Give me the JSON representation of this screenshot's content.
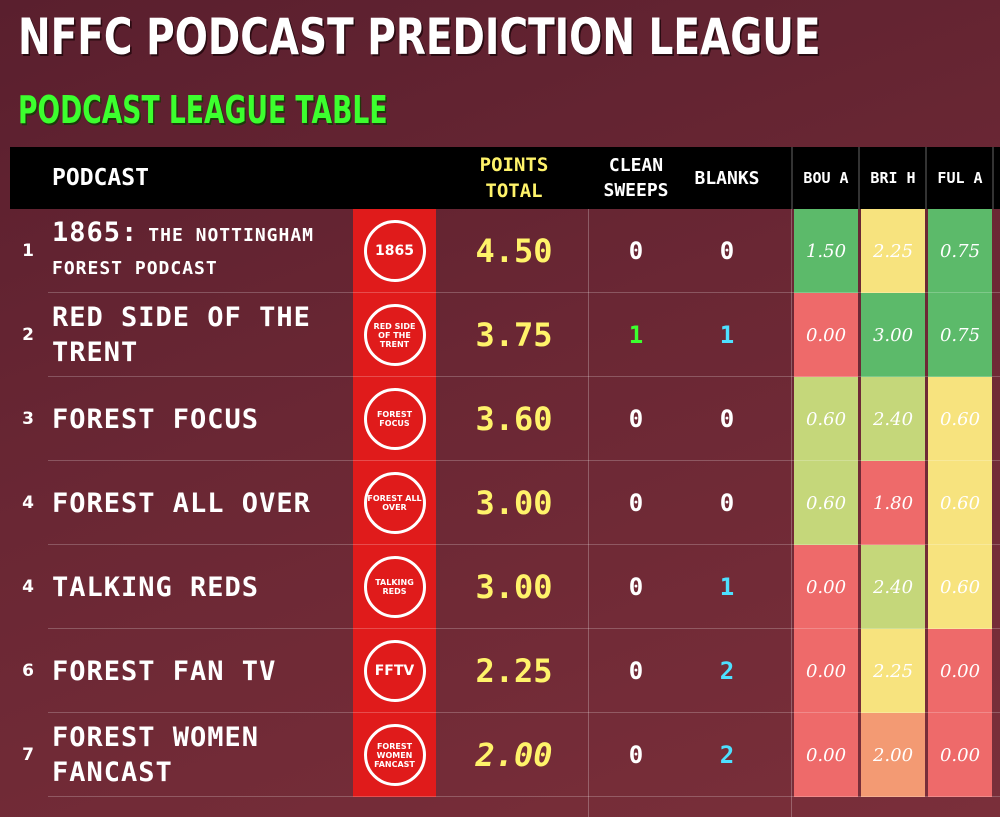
{
  "title": "NFFC PODCAST PREDICTION LEAGUE",
  "subtitle": "PODCAST LEAGUE TABLE",
  "header": {
    "podcast": "PODCAST",
    "points_line1": "POINTS",
    "points_line2": "TOTAL",
    "clean_line1": "CLEAN",
    "clean_line2": "SWEEPS",
    "blanks": "BLANKS",
    "gameweeks": [
      "BOU A",
      "BRI H",
      "FUL A"
    ]
  },
  "colors": {
    "green_cell": "#5cba6a",
    "yellow_cell": "#f7e37e",
    "lightgreen_cell": "#c5d77a",
    "red_cell": "#ee6a6a",
    "orange_cell": "#f39a73",
    "logo_red": "#e01b1b"
  },
  "rows": [
    {
      "rank": "1",
      "name_line1": "1865:",
      "name_line1b": "THE NOTTINGHAM",
      "name_line2": "FOREST PODCAST",
      "logo_text": "1865",
      "points": "4.50",
      "clean_sweeps": "0",
      "blanks": "0",
      "gw": [
        "1.50",
        "2.25",
        "0.75"
      ],
      "gw_colors": [
        "#5cba6a",
        "#f7e37e",
        "#5cba6a"
      ]
    },
    {
      "rank": "2",
      "name_line1": "RED SIDE OF THE",
      "name_line2": "TRENT",
      "logo_text": "RED SIDE OF THE TRENT",
      "points": "3.75",
      "clean_sweeps": "1",
      "blanks": "1",
      "gw": [
        "0.00",
        "3.00",
        "0.75"
      ],
      "gw_colors": [
        "#ee6a6a",
        "#5cba6a",
        "#5cba6a"
      ]
    },
    {
      "rank": "3",
      "name_line1": "FOREST FOCUS",
      "name_line2": "",
      "logo_text": "FOREST FOCUS",
      "points": "3.60",
      "clean_sweeps": "0",
      "blanks": "0",
      "gw": [
        "0.60",
        "2.40",
        "0.60"
      ],
      "gw_colors": [
        "#c5d77a",
        "#c5d77a",
        "#f7e37e"
      ]
    },
    {
      "rank": "4",
      "name_line1": "FOREST ALL OVER",
      "name_line2": "",
      "logo_text": "FOREST ALL OVER",
      "points": "3.00",
      "clean_sweeps": "0",
      "blanks": "0",
      "gw": [
        "0.60",
        "1.80",
        "0.60"
      ],
      "gw_colors": [
        "#c5d77a",
        "#ee6a6a",
        "#f7e37e"
      ]
    },
    {
      "rank": "4",
      "name_line1": "TALKING REDS",
      "name_line2": "",
      "logo_text": "TALKING REDS",
      "points": "3.00",
      "clean_sweeps": "0",
      "blanks": "1",
      "gw": [
        "0.00",
        "2.40",
        "0.60"
      ],
      "gw_colors": [
        "#ee6a6a",
        "#c5d77a",
        "#f7e37e"
      ]
    },
    {
      "rank": "6",
      "name_line1": "FOREST FAN TV",
      "name_line2": "",
      "logo_text": "FFTV",
      "points": "2.25",
      "clean_sweeps": "0",
      "blanks": "2",
      "gw": [
        "0.00",
        "2.25",
        "0.00"
      ],
      "gw_colors": [
        "#ee6a6a",
        "#f7e37e",
        "#ee6a6a"
      ]
    },
    {
      "rank": "7",
      "name_line1": "FOREST WOMEN",
      "name_line2": "FANCAST",
      "logo_text": "FOREST WOMEN FANCAST",
      "points": "2.00",
      "clean_sweeps": "0",
      "blanks": "2",
      "gw": [
        "0.00",
        "2.00",
        "0.00"
      ],
      "gw_colors": [
        "#ee6a6a",
        "#f39a73",
        "#ee6a6a"
      ]
    }
  ]
}
